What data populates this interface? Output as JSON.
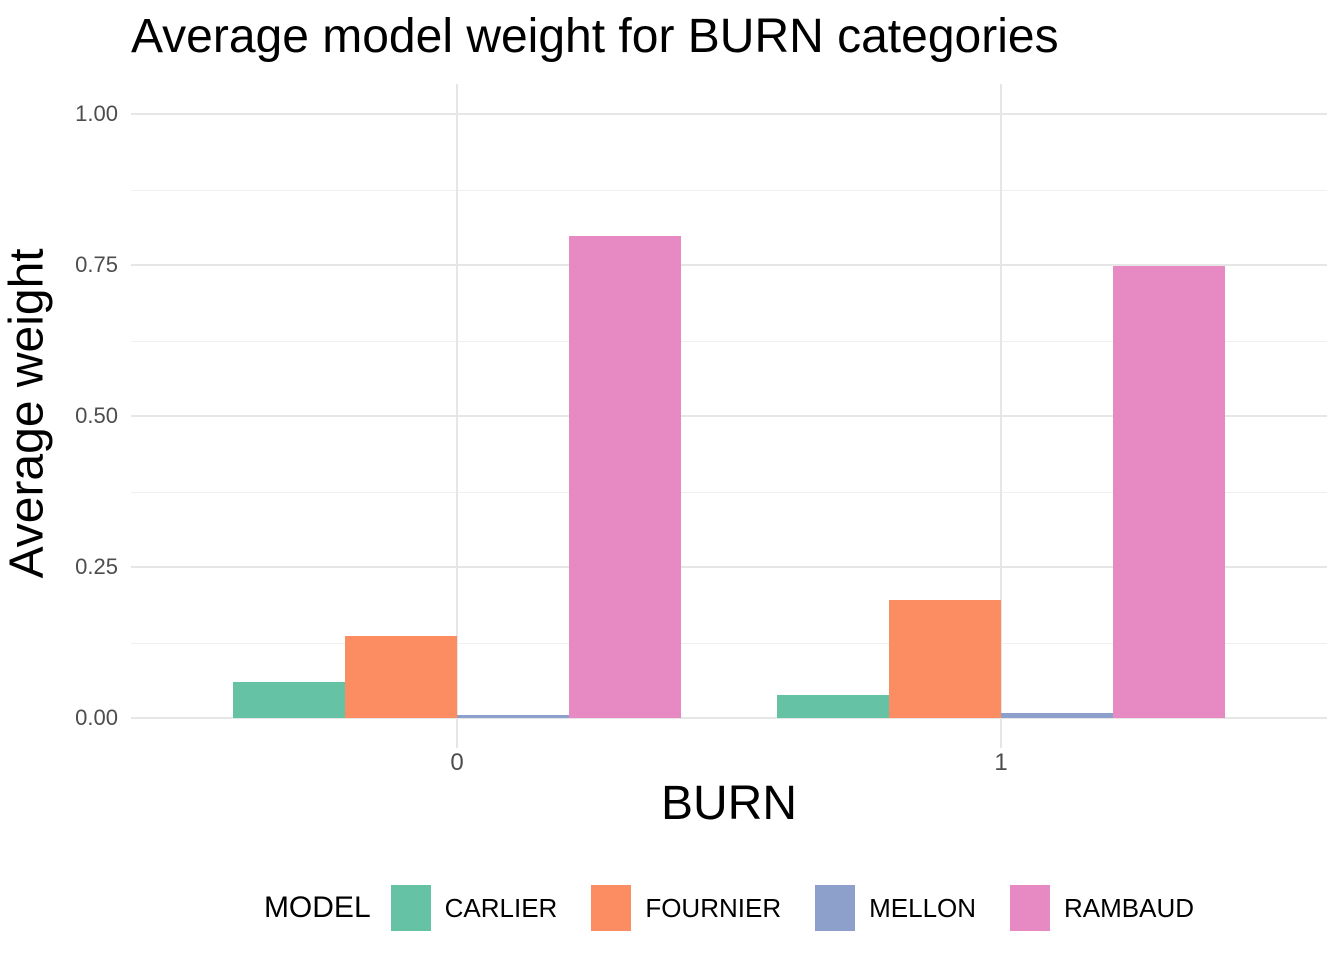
{
  "title": "Average model weight for BURN categories",
  "chart_data": {
    "type": "bar",
    "title": "Average model weight for BURN categories",
    "xlabel": "BURN",
    "ylabel": "Average weight",
    "categories": [
      "0",
      "1"
    ],
    "series": [
      {
        "name": "CARLIER",
        "color": "#66C2A5",
        "values": [
          0.06,
          0.038
        ]
      },
      {
        "name": "FOURNIER",
        "color": "#FC8D62",
        "values": [
          0.136,
          0.195
        ]
      },
      {
        "name": "MELLON",
        "color": "#8DA0CB",
        "values": [
          0.005,
          0.009
        ]
      },
      {
        "name": "RAMBAUD",
        "color": "#E78AC3",
        "values": [
          0.798,
          0.749
        ]
      }
    ],
    "ylim": [
      0,
      1
    ],
    "yticks": [
      0.0,
      0.25,
      0.5,
      0.75,
      1.0
    ],
    "ytick_labels": [
      "0.00",
      "0.25",
      "0.50",
      "0.75",
      "1.00"
    ],
    "minor_yticks": [
      0.125,
      0.375,
      0.625,
      0.875
    ],
    "grid": true,
    "grid_major_color": "#e6e6e6",
    "grid_minor_color": "#f0f0f0",
    "axis_text_color": "#4d4d4d",
    "legend_title": "MODEL",
    "legend_position": "bottom"
  }
}
